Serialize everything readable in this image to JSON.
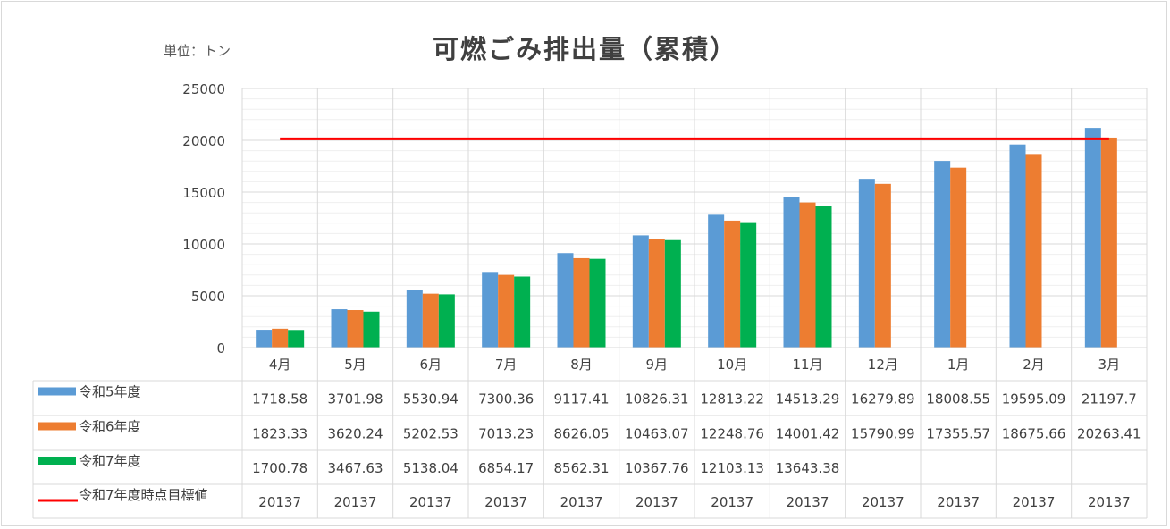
{
  "chart_data": {
    "type": "bar",
    "title": "可燃ごみ排出量（累積）",
    "unit_label": "単位：トン",
    "categories": [
      "4月",
      "5月",
      "6月",
      "7月",
      "8月",
      "9月",
      "10月",
      "11月",
      "12月",
      "1月",
      "2月",
      "3月"
    ],
    "ylim": [
      0,
      25000
    ],
    "yticks": [
      "0",
      "5000",
      "10000",
      "15000",
      "20000",
      "25000"
    ],
    "grid": true,
    "legend_placement": "data-table",
    "series": [
      {
        "name": "令和5年度",
        "type": "bar",
        "color": "#5b9bd5",
        "values": [
          1718.58,
          3701.98,
          5530.94,
          7300.36,
          9117.41,
          10826.31,
          12813.22,
          14513.29,
          16279.89,
          18008.55,
          19595.09,
          21197.7
        ],
        "labels": [
          "1718.58",
          "3701.98",
          "5530.94",
          "7300.36",
          "9117.41",
          "10826.31",
          "12813.22",
          "14513.29",
          "16279.89",
          "18008.55",
          "19595.09",
          "21197.7"
        ]
      },
      {
        "name": "令和6年度",
        "type": "bar",
        "color": "#ed7d31",
        "values": [
          1823.33,
          3620.24,
          5202.53,
          7013.23,
          8626.05,
          10463.07,
          12248.76,
          14001.42,
          15790.99,
          17355.57,
          18675.66,
          20263.41
        ],
        "labels": [
          "1823.33",
          "3620.24",
          "5202.53",
          "7013.23",
          "8626.05",
          "10463.07",
          "12248.76",
          "14001.42",
          "15790.99",
          "17355.57",
          "18675.66",
          "20263.41"
        ]
      },
      {
        "name": "令和7年度",
        "type": "bar",
        "color": "#00b050",
        "values": [
          1700.78,
          3467.63,
          5138.04,
          6854.17,
          8562.31,
          10367.76,
          12103.13,
          13643.38,
          null,
          null,
          null,
          null
        ],
        "labels": [
          "1700.78",
          "3467.63",
          "5138.04",
          "6854.17",
          "8562.31",
          "10367.76",
          "12103.13",
          "13643.38",
          "",
          "",
          "",
          ""
        ]
      },
      {
        "name": "令和7年度時点目標値",
        "type": "line",
        "color": "#ff0000",
        "values": [
          20137,
          20137,
          20137,
          20137,
          20137,
          20137,
          20137,
          20137,
          20137,
          20137,
          20137,
          20137
        ],
        "labels": [
          "20137",
          "20137",
          "20137",
          "20137",
          "20137",
          "20137",
          "20137",
          "20137",
          "20137",
          "20137",
          "20137",
          "20137"
        ]
      }
    ]
  }
}
